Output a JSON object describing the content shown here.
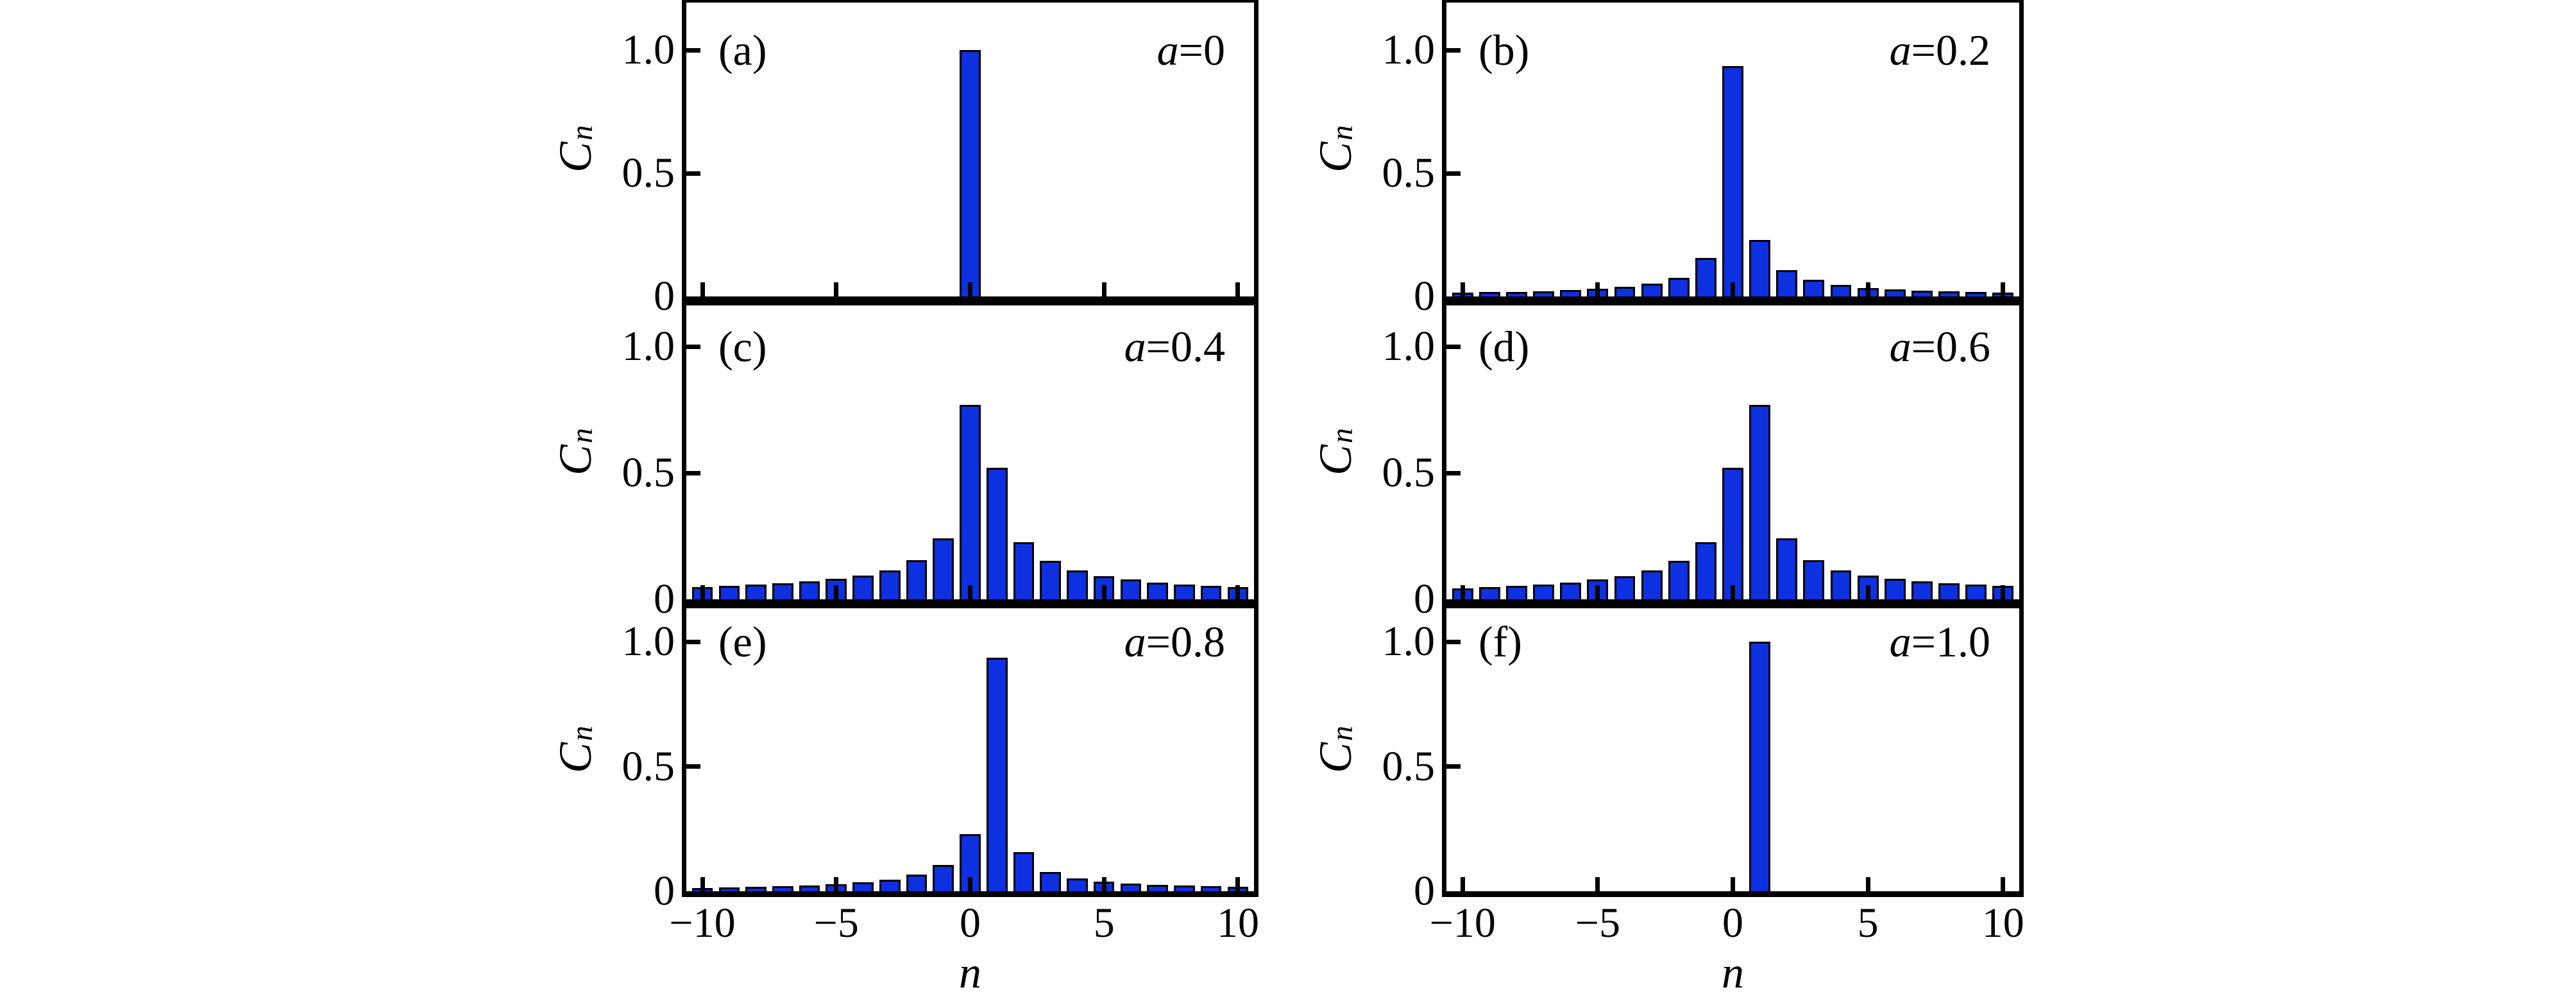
{
  "figure": {
    "background": "#ffffff",
    "bar_color": "#0d30e0",
    "bar_edge_color": "#000000",
    "axis_color": "#000000",
    "ylabel_main": "C",
    "ylabel_sub": "n",
    "xlabel": "n",
    "ytick_labels": [
      "1.0",
      "0.5",
      "0"
    ],
    "ytick_values": [
      1.0,
      0.5,
      0
    ],
    "xtick_labels": [
      "−10",
      "−5",
      "0",
      "5",
      "10"
    ],
    "xtick_values": [
      -10,
      -5,
      0,
      5,
      10
    ]
  },
  "chart_data": [
    {
      "type": "bar",
      "panel_label": "(a)",
      "annotation": "a=0",
      "a_value": 0,
      "xlabel": "n",
      "ylabel": "C_n",
      "xlim": [
        -10.6,
        10.6
      ],
      "ylim": [
        0,
        1.19
      ],
      "xticks": [
        -10,
        -5,
        0,
        5,
        10
      ],
      "yticks": [
        0,
        0.5,
        1.0
      ],
      "x": [
        -10,
        -9,
        -8,
        -7,
        -6,
        -5,
        -4,
        -3,
        -2,
        -1,
        0,
        1,
        2,
        3,
        4,
        5,
        6,
        7,
        8,
        9,
        10
      ],
      "values": [
        0,
        0,
        0,
        0,
        0,
        0,
        0,
        0,
        0,
        0,
        1.0,
        0,
        0,
        0,
        0,
        0,
        0,
        0,
        0,
        0,
        0
      ]
    },
    {
      "type": "bar",
      "panel_label": "(b)",
      "annotation": "a=0.2",
      "a_value": 0.2,
      "xlabel": "n",
      "ylabel": "C_n",
      "xlim": [
        -10.6,
        10.6
      ],
      "ylim": [
        0,
        1.19
      ],
      "xticks": [
        -10,
        -5,
        0,
        5,
        10
      ],
      "yticks": [
        0,
        0.5,
        1.0
      ],
      "x": [
        -10,
        -9,
        -8,
        -7,
        -6,
        -5,
        -4,
        -3,
        -2,
        -1,
        0,
        1,
        2,
        3,
        4,
        5,
        6,
        7,
        8,
        9,
        10
      ],
      "values": [
        0.015,
        0.017,
        0.019,
        0.022,
        0.026,
        0.031,
        0.039,
        0.052,
        0.076,
        0.156,
        0.935,
        0.23,
        0.106,
        0.067,
        0.046,
        0.035,
        0.028,
        0.023,
        0.02,
        0.017,
        0.015
      ]
    },
    {
      "type": "bar",
      "panel_label": "(c)",
      "annotation": "a=0.4",
      "a_value": 0.4,
      "xlabel": "n",
      "ylabel": "C_n",
      "xlim": [
        -10.6,
        10.6
      ],
      "ylim": [
        0,
        1.17
      ],
      "xticks": [
        -10,
        -5,
        0,
        5,
        10
      ],
      "yticks": [
        0,
        0.5,
        1.0
      ],
      "x": [
        -10,
        -9,
        -8,
        -7,
        -6,
        -5,
        -4,
        -3,
        -2,
        -1,
        0,
        1,
        2,
        3,
        4,
        5,
        6,
        7,
        8,
        9,
        10
      ],
      "values": [
        0.049,
        0.053,
        0.058,
        0.064,
        0.072,
        0.082,
        0.095,
        0.115,
        0.155,
        0.24,
        0.77,
        0.52,
        0.225,
        0.152,
        0.113,
        0.092,
        0.078,
        0.067,
        0.059,
        0.053,
        0.048
      ]
    },
    {
      "type": "bar",
      "panel_label": "(d)",
      "annotation": "a=0.6",
      "a_value": 0.6,
      "xlabel": "n",
      "ylabel": "C_n",
      "xlim": [
        -10.6,
        10.6
      ],
      "ylim": [
        0,
        1.17
      ],
      "xticks": [
        -10,
        -5,
        0,
        5,
        10
      ],
      "yticks": [
        0,
        0.5,
        1.0
      ],
      "x": [
        -10,
        -9,
        -8,
        -7,
        -6,
        -5,
        -4,
        -3,
        -2,
        -1,
        0,
        1,
        2,
        3,
        4,
        5,
        6,
        7,
        8,
        9,
        10
      ],
      "values": [
        0.044,
        0.048,
        0.053,
        0.059,
        0.067,
        0.078,
        0.092,
        0.113,
        0.152,
        0.225,
        0.52,
        0.77,
        0.24,
        0.155,
        0.115,
        0.095,
        0.082,
        0.072,
        0.064,
        0.058,
        0.053
      ]
    },
    {
      "type": "bar",
      "panel_label": "(e)",
      "annotation": "a=0.8",
      "a_value": 0.8,
      "xlabel": "n",
      "ylabel": "C_n",
      "xlim": [
        -10.6,
        10.6
      ],
      "ylim": [
        0,
        1.13
      ],
      "xticks": [
        -10,
        -5,
        0,
        5,
        10
      ],
      "yticks": [
        0,
        0.5,
        1.0
      ],
      "x": [
        -10,
        -9,
        -8,
        -7,
        -6,
        -5,
        -4,
        -3,
        -2,
        -1,
        0,
        1,
        2,
        3,
        4,
        5,
        6,
        7,
        8,
        9,
        10
      ],
      "values": [
        0.013,
        0.015,
        0.017,
        0.02,
        0.023,
        0.028,
        0.035,
        0.046,
        0.067,
        0.106,
        0.23,
        0.935,
        0.156,
        0.076,
        0.052,
        0.039,
        0.031,
        0.026,
        0.022,
        0.02,
        0.017
      ]
    },
    {
      "type": "bar",
      "panel_label": "(f)",
      "annotation": "a=1.0",
      "a_value": 1.0,
      "xlabel": "n",
      "ylabel": "C_n",
      "xlim": [
        -10.6,
        10.6
      ],
      "ylim": [
        0,
        1.13
      ],
      "xticks": [
        -10,
        -5,
        0,
        5,
        10
      ],
      "yticks": [
        0,
        0.5,
        1.0
      ],
      "x": [
        -10,
        -9,
        -8,
        -7,
        -6,
        -5,
        -4,
        -3,
        -2,
        -1,
        0,
        1,
        2,
        3,
        4,
        5,
        6,
        7,
        8,
        9,
        10
      ],
      "values": [
        0,
        0,
        0,
        0,
        0,
        0,
        0,
        0,
        0,
        0,
        0,
        1.0,
        0,
        0,
        0,
        0,
        0,
        0,
        0,
        0,
        0
      ]
    }
  ]
}
